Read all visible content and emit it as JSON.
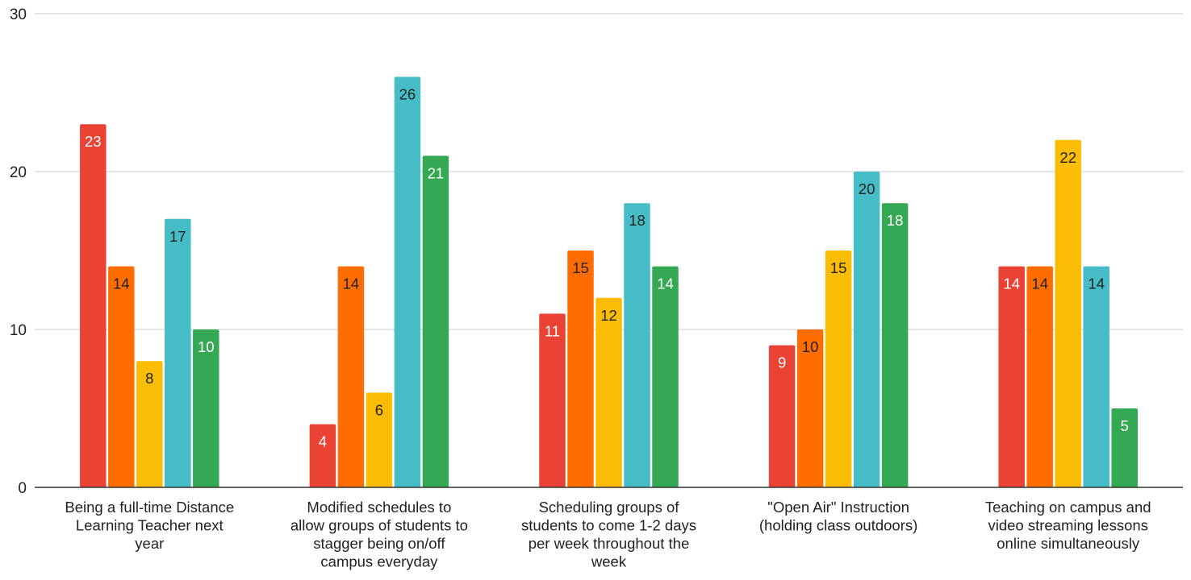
{
  "chart_data": {
    "type": "bar",
    "title": "",
    "xlabel": "",
    "ylabel": "",
    "ylim": [
      0,
      30
    ],
    "yticks": [
      0,
      10,
      20,
      30
    ],
    "grid": true,
    "legend": "none",
    "categories": [
      [
        "Being a full-time Distance",
        "Learning Teacher next",
        "year"
      ],
      [
        "Modified schedules to",
        "allow groups of students to",
        "stagger being on/off",
        "campus everyday"
      ],
      [
        "Scheduling groups of",
        "students to come 1-2 days",
        "per week throughout the",
        "week"
      ],
      [
        "\"Open Air\" Instruction",
        "(holding class outdoors)"
      ],
      [
        "Teaching on campus and",
        "video streaming lessons",
        "online simultaneously"
      ]
    ],
    "series": [
      {
        "color": "#EA4335",
        "label_color": "#ffffff",
        "values": [
          23,
          4,
          11,
          9,
          14
        ]
      },
      {
        "color": "#FF6D01",
        "label_color": "#222222",
        "values": [
          14,
          14,
          15,
          10,
          14
        ]
      },
      {
        "color": "#FBBC04",
        "label_color": "#222222",
        "values": [
          8,
          6,
          12,
          15,
          22
        ]
      },
      {
        "color": "#46BDC6",
        "label_color": "#222222",
        "values": [
          17,
          26,
          18,
          20,
          14
        ]
      },
      {
        "color": "#34A853",
        "label_color": "#ffffff",
        "values": [
          10,
          21,
          14,
          18,
          5
        ]
      }
    ]
  }
}
